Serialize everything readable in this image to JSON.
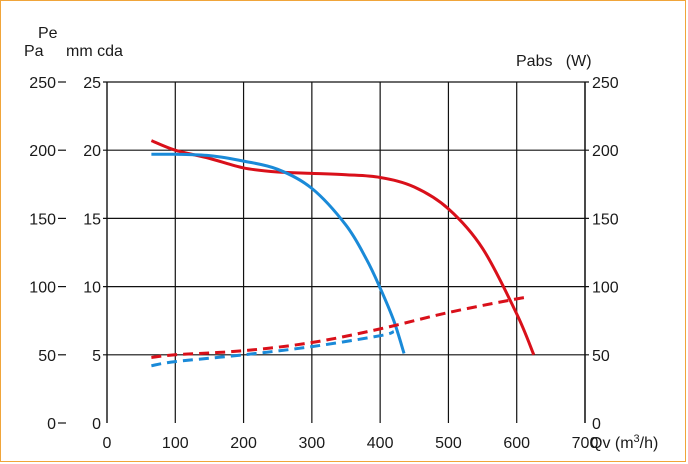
{
  "chart_data": {
    "type": "line",
    "title": "",
    "left_axis_outer": {
      "label": "Pa",
      "ticks": [
        0,
        50,
        100,
        150,
        200,
        250
      ],
      "range": [
        0,
        250
      ]
    },
    "left_axis_inner": {
      "label_top": "Pe",
      "label": "mm cda",
      "ticks": [
        0,
        5,
        10,
        15,
        20,
        25
      ],
      "range": [
        0,
        25
      ]
    },
    "right_axis": {
      "label": "Pabs   (W)",
      "ticks": [
        0,
        50,
        100,
        150,
        200,
        250
      ],
      "range": [
        0,
        250
      ]
    },
    "x_axis": {
      "label": "Qv (m³/h)",
      "ticks": [
        0,
        100,
        200,
        300,
        400,
        500,
        600,
        700
      ],
      "range": [
        0,
        700
      ]
    },
    "grid": true,
    "colors": {
      "red": "#d9101a",
      "blue": "#1a8ad8",
      "grid": "#111111"
    },
    "series": [
      {
        "color": "red",
        "style": "solid",
        "axis": "Pa",
        "x": [
          65,
          100,
          150,
          200,
          250,
          300,
          350,
          400,
          450,
          500,
          550,
          600,
          625
        ],
        "y": [
          207,
          200,
          194,
          187,
          184,
          183,
          182,
          180,
          173,
          157,
          128,
          80,
          50
        ]
      },
      {
        "color": "blue",
        "style": "solid",
        "axis": "Pa",
        "x": [
          65,
          100,
          150,
          200,
          250,
          300,
          350,
          380,
          400,
          420,
          435
        ],
        "y": [
          197,
          197,
          196,
          192,
          186,
          172,
          145,
          120,
          99,
          75,
          51
        ]
      },
      {
        "color": "red",
        "style": "dashed",
        "axis": "Pabs",
        "x": [
          65,
          100,
          200,
          300,
          400,
          500,
          600,
          615
        ],
        "y": [
          48,
          50,
          53,
          59,
          69,
          81,
          91,
          92
        ]
      },
      {
        "color": "blue",
        "style": "dashed",
        "axis": "Pabs",
        "x": [
          65,
          100,
          200,
          300,
          400,
          420
        ],
        "y": [
          42,
          45,
          50,
          56,
          64,
          67
        ]
      }
    ]
  }
}
